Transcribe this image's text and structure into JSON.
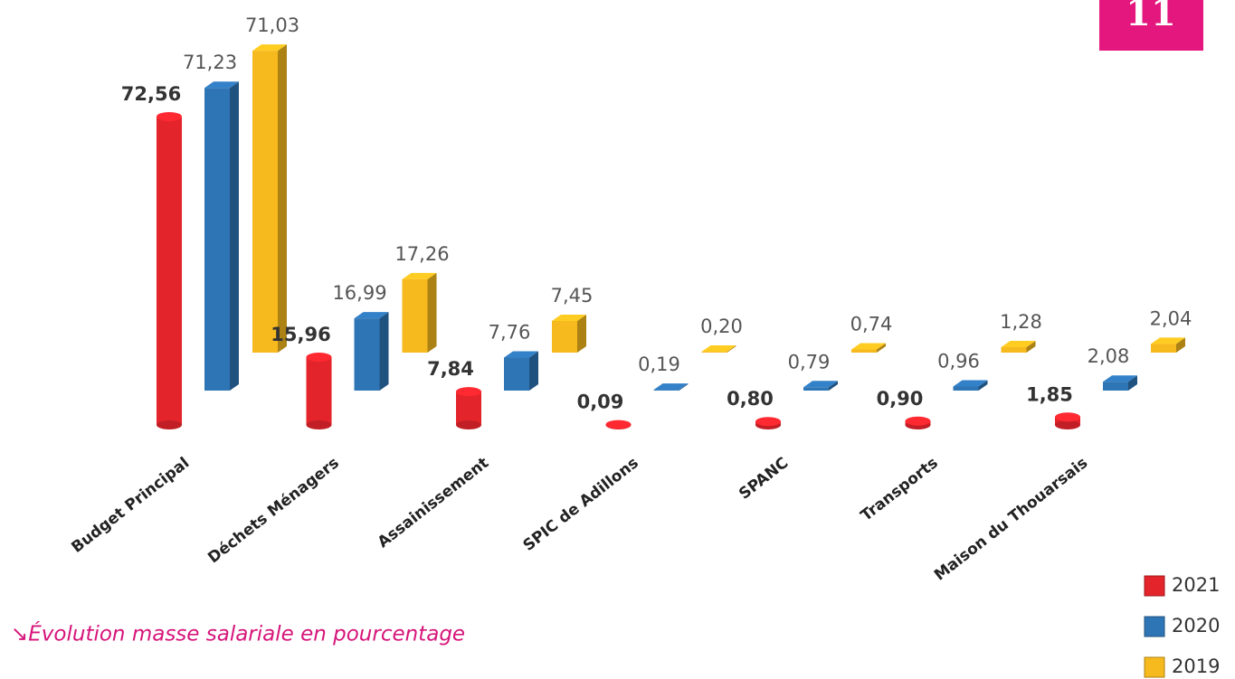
{
  "page_number": "11",
  "caption": "↘Évolution masse salariale en pourcentage",
  "chart_data": {
    "type": "bar3d",
    "categories": [
      "Budget Principal",
      "Déchets Ménagers",
      "Assainissement",
      "SPIC de Adillons",
      "SPANC",
      "Transports",
      "Maison du Thouarsais"
    ],
    "series": [
      {
        "name": "2021",
        "color": "#e3242b",
        "values": [
          72.56,
          15.96,
          7.84,
          0.09,
          0.8,
          0.9,
          1.85
        ],
        "value_labels": [
          "72,56",
          "15,96",
          "7,84",
          "0,09",
          "0,80",
          "0,90",
          "1,85"
        ]
      },
      {
        "name": "2020",
        "color": "#2e75b6",
        "values": [
          71.23,
          16.99,
          7.76,
          0.19,
          0.79,
          0.96,
          2.08
        ],
        "value_labels": [
          "71,23",
          "16,99",
          "7,76",
          "0,19",
          "0,79",
          "0,96",
          "2,08"
        ]
      },
      {
        "name": "2019",
        "color": "#f6b91e",
        "values": [
          71.03,
          17.26,
          7.45,
          0.2,
          0.74,
          1.28,
          2.04
        ],
        "value_labels": [
          "71,03",
          "17,26",
          "7,45",
          "0,20",
          "0,74",
          "1,28",
          "2,04"
        ]
      }
    ]
  }
}
